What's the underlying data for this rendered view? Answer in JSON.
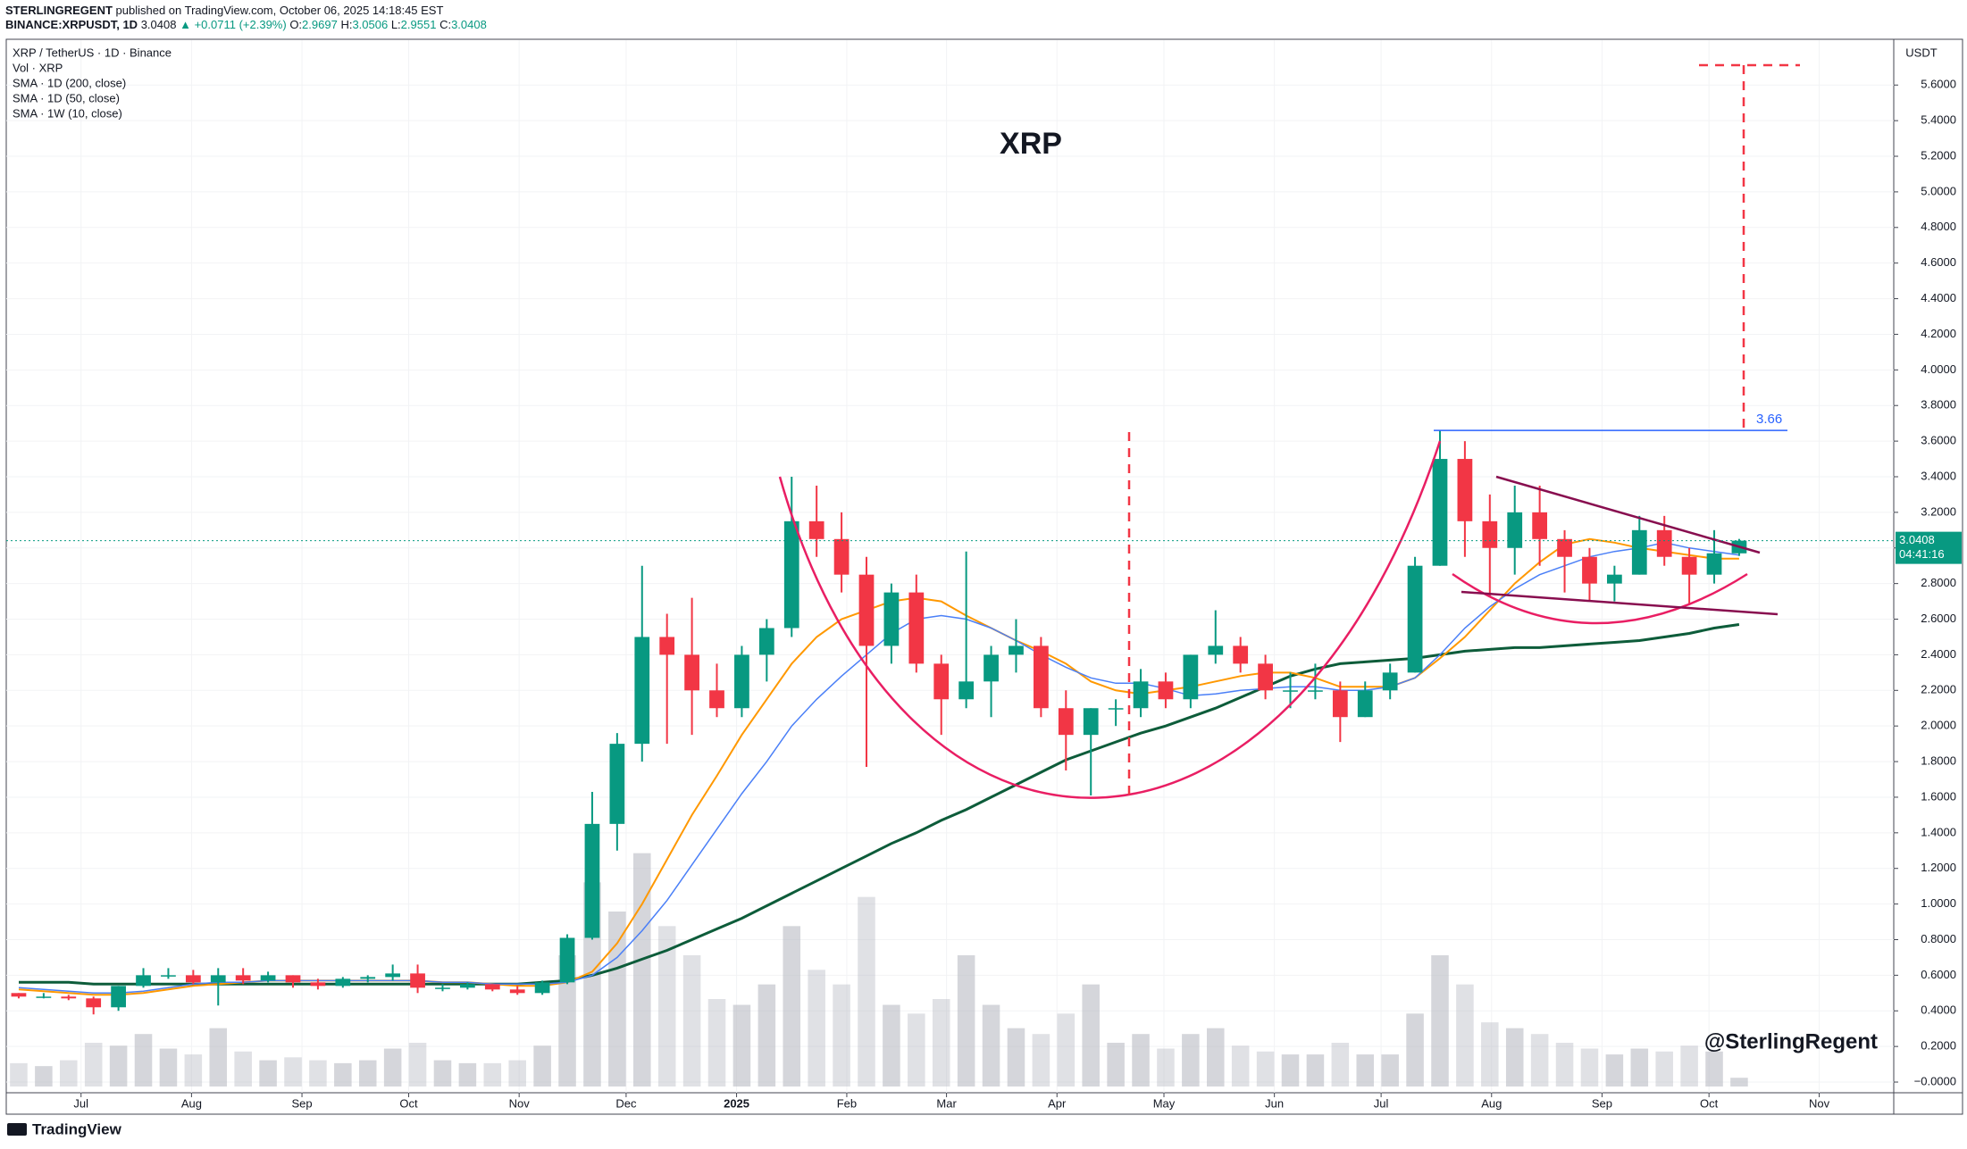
{
  "header": {
    "publisher": "STERLINGREGENT",
    "published": "published on TradingView.com, October 06, 2025 14:18:45 EST",
    "symbol": "BINANCE:XRPUSDT, 1D",
    "price": 3.0408,
    "change": "▲ +0.0711 (+2.39%)",
    "ohlc": [
      {
        "key": "O:",
        "value": 2.9697
      },
      {
        "key": "H:",
        "value": 3.0506
      },
      {
        "key": "L:",
        "value": 2.9551
      },
      {
        "key": "C:",
        "value": 3.0408
      }
    ]
  },
  "footer": {
    "brand": "TradingView"
  },
  "chart_data": {
    "type": "candlestick",
    "title": "XRP",
    "watermark": "@SterlingRegent",
    "symbol": "XRP / TetherUS · 1D · Binance",
    "volume_name": "Vol · XRP",
    "currency": "USDT",
    "up_color": "#089981",
    "down_color": "#f23645",
    "volume_color": "#b2b5be",
    "grid": true,
    "categories": [
      null,
      null,
      null,
      null,
      null,
      null,
      null,
      null,
      null,
      null,
      null,
      null,
      null,
      null,
      null,
      null,
      null,
      null,
      null,
      null,
      null,
      null,
      null,
      null,
      null,
      null,
      null,
      null,
      null,
      null,
      null,
      null,
      null,
      null,
      null,
      null,
      null,
      null,
      null,
      null,
      null,
      null,
      null,
      null,
      null,
      null,
      null,
      null,
      null,
      null,
      null,
      null,
      null,
      null,
      null,
      null,
      null,
      null,
      null,
      null,
      null,
      null,
      null,
      null,
      null,
      null,
      null,
      null,
      null,
      null
    ],
    "open": [
      0.5,
      0.48,
      0.48,
      0.47,
      0.42,
      0.54,
      0.6,
      0.6,
      0.56,
      0.6,
      0.57,
      0.6,
      0.56,
      0.54,
      0.58,
      0.59,
      0.61,
      0.53,
      0.53,
      0.55,
      0.52,
      0.5,
      0.56,
      0.81,
      1.45,
      1.9,
      2.5,
      2.4,
      2.2,
      2.1,
      2.4,
      2.55,
      3.15,
      3.05,
      2.85,
      2.45,
      2.75,
      2.35,
      2.15,
      2.25,
      2.4,
      2.45,
      2.1,
      1.95,
      2.1,
      2.1,
      2.25,
      2.15,
      2.4,
      2.45,
      2.35,
      2.2,
      2.2,
      2.2,
      2.05,
      2.2,
      2.3,
      2.9,
      3.5,
      3.15,
      3.0,
      3.2,
      3.05,
      2.95,
      2.8,
      2.85,
      3.1,
      2.95,
      2.85,
      2.9697
    ],
    "high": [
      0.5,
      0.5,
      0.49,
      0.48,
      0.54,
      0.64,
      0.64,
      0.63,
      0.64,
      0.64,
      0.62,
      0.6,
      0.58,
      0.59,
      0.6,
      0.66,
      0.66,
      0.55,
      0.56,
      0.55,
      0.54,
      0.57,
      0.83,
      1.63,
      1.96,
      2.9,
      2.63,
      2.72,
      2.35,
      2.45,
      2.6,
      3.4,
      3.35,
      3.2,
      2.95,
      2.8,
      2.85,
      2.4,
      2.98,
      2.45,
      2.6,
      2.5,
      2.2,
      2.1,
      2.15,
      2.32,
      2.3,
      2.4,
      2.65,
      2.5,
      2.4,
      2.3,
      2.35,
      2.25,
      2.25,
      2.35,
      2.95,
      3.66,
      3.6,
      3.3,
      3.35,
      3.35,
      3.1,
      3.0,
      2.9,
      3.18,
      3.18,
      3.0,
      3.1,
      3.0506
    ],
    "low": [
      0.47,
      0.47,
      0.46,
      0.38,
      0.4,
      0.53,
      0.58,
      0.55,
      0.43,
      0.55,
      0.56,
      0.53,
      0.52,
      0.53,
      0.56,
      0.57,
      0.5,
      0.51,
      0.52,
      0.51,
      0.49,
      0.49,
      0.55,
      0.8,
      1.3,
      1.8,
      1.9,
      1.95,
      2.05,
      2.05,
      2.25,
      2.5,
      2.95,
      2.75,
      1.77,
      2.35,
      2.3,
      1.95,
      2.1,
      2.05,
      2.3,
      2.05,
      1.75,
      1.61,
      2.0,
      2.05,
      2.1,
      2.1,
      2.35,
      2.3,
      2.15,
      2.1,
      2.15,
      1.91,
      2.05,
      2.15,
      2.3,
      2.9,
      2.95,
      2.73,
      2.85,
      2.9,
      2.75,
      2.7,
      2.7,
      2.85,
      2.9,
      2.68,
      2.8,
      2.9551
    ],
    "close": [
      0.48,
      0.48,
      0.47,
      0.42,
      0.54,
      0.6,
      0.6,
      0.56,
      0.6,
      0.57,
      0.6,
      0.56,
      0.54,
      0.58,
      0.59,
      0.61,
      0.53,
      0.53,
      0.55,
      0.52,
      0.5,
      0.56,
      0.81,
      1.45,
      1.9,
      2.5,
      2.4,
      2.2,
      2.1,
      2.4,
      2.55,
      3.15,
      3.05,
      2.85,
      2.45,
      2.75,
      2.35,
      2.15,
      2.25,
      2.4,
      2.45,
      2.1,
      1.95,
      2.1,
      2.1,
      2.25,
      2.15,
      2.4,
      2.45,
      2.35,
      2.2,
      2.2,
      2.2,
      2.05,
      2.2,
      2.3,
      2.9,
      3.5,
      3.15,
      3.0,
      3.2,
      3.05,
      2.95,
      2.8,
      2.85,
      3.1,
      2.95,
      2.85,
      2.97,
      3.0408
    ],
    "volume": [
      800,
      700,
      900,
      1500,
      1400,
      1800,
      1300,
      1100,
      2000,
      1200,
      900,
      1000,
      900,
      800,
      900,
      1300,
      1500,
      900,
      800,
      800,
      900,
      1400,
      4500,
      7000,
      6000,
      8000,
      5500,
      4500,
      3000,
      2800,
      3500,
      5500,
      4000,
      3500,
      6500,
      2800,
      2500,
      3000,
      4500,
      2800,
      2000,
      1800,
      2500,
      3500,
      1500,
      1800,
      1300,
      1800,
      2000,
      1400,
      1200,
      1100,
      1100,
      1500,
      1100,
      1100,
      2500,
      4500,
      3500,
      2200,
      2000,
      1800,
      1500,
      1300,
      1100,
      1300,
      1200,
      1400,
      1200,
      300
    ],
    "vlim": [
      0,
      36000
    ],
    "series": [
      {
        "name": "SMA · 1D (200, close)",
        "color": "#0d5c3a",
        "width": 3,
        "values": [
          0.56,
          0.56,
          0.56,
          0.55,
          0.55,
          0.55,
          0.55,
          0.55,
          0.55,
          0.55,
          0.55,
          0.55,
          0.55,
          0.55,
          0.55,
          0.55,
          0.55,
          0.55,
          0.55,
          0.55,
          0.55,
          0.56,
          0.57,
          0.6,
          0.64,
          0.69,
          0.74,
          0.8,
          0.86,
          0.92,
          0.99,
          1.06,
          1.13,
          1.2,
          1.27,
          1.34,
          1.4,
          1.47,
          1.53,
          1.6,
          1.67,
          1.74,
          1.81,
          1.86,
          1.91,
          1.96,
          2.0,
          2.05,
          2.1,
          2.16,
          2.22,
          2.28,
          2.32,
          2.35,
          2.36,
          2.37,
          2.38,
          2.4,
          2.42,
          2.43,
          2.44,
          2.44,
          2.45,
          2.46,
          2.47,
          2.48,
          2.5,
          2.52,
          2.55,
          2.57
        ]
      },
      {
        "name": "SMA · 1D (50, close)",
        "color": "#ff9800",
        "width": 2,
        "values": [
          0.52,
          0.51,
          0.5,
          0.49,
          0.49,
          0.5,
          0.52,
          0.54,
          0.55,
          0.56,
          0.57,
          0.57,
          0.57,
          0.57,
          0.57,
          0.57,
          0.57,
          0.56,
          0.56,
          0.55,
          0.54,
          0.54,
          0.56,
          0.62,
          0.78,
          1.0,
          1.25,
          1.5,
          1.72,
          1.95,
          2.15,
          2.35,
          2.5,
          2.6,
          2.65,
          2.7,
          2.72,
          2.7,
          2.62,
          2.55,
          2.48,
          2.42,
          2.35,
          2.25,
          2.2,
          2.18,
          2.2,
          2.22,
          2.25,
          2.28,
          2.3,
          2.3,
          2.27,
          2.22,
          2.22,
          2.22,
          2.27,
          2.38,
          2.5,
          2.65,
          2.8,
          2.92,
          3.02,
          3.05,
          3.03,
          3.0,
          2.98,
          2.96,
          2.94,
          2.94
        ]
      },
      {
        "name": "SMA · 1W (10, close)",
        "color": "#4a7ff7",
        "width": 1.5,
        "values": [
          0.53,
          0.52,
          0.51,
          0.5,
          0.5,
          0.51,
          0.53,
          0.55,
          0.56,
          0.56,
          0.57,
          0.57,
          0.57,
          0.57,
          0.57,
          0.57,
          0.57,
          0.56,
          0.56,
          0.55,
          0.55,
          0.55,
          0.56,
          0.6,
          0.7,
          0.85,
          1.02,
          1.22,
          1.42,
          1.62,
          1.8,
          2.0,
          2.15,
          2.28,
          2.4,
          2.52,
          2.6,
          2.62,
          2.6,
          2.55,
          2.48,
          2.4,
          2.33,
          2.27,
          2.24,
          2.24,
          2.21,
          2.17,
          2.18,
          2.2,
          2.21,
          2.22,
          2.22,
          2.2,
          2.2,
          2.22,
          2.27,
          2.4,
          2.55,
          2.67,
          2.77,
          2.85,
          2.9,
          2.95,
          2.98,
          3.0,
          3.03,
          3.0,
          2.98,
          2.96
        ]
      }
    ],
    "last_price": 3.0408,
    "countdown": "04:41:16",
    "level": 3.66,
    "xlim": [
      -0.5,
      75.2
    ],
    "xticks": [
      {
        "value": 2.5,
        "label": "Jul"
      },
      {
        "value": 6.93,
        "label": "Aug"
      },
      {
        "value": 11.36,
        "label": "Sep"
      },
      {
        "value": 15.64,
        "label": "Oct"
      },
      {
        "value": 20.07,
        "label": "Nov"
      },
      {
        "value": 24.36,
        "label": "Dec"
      },
      {
        "value": 28.79,
        "label": "2025"
      },
      {
        "value": 33.21,
        "label": "Feb"
      },
      {
        "value": 37.21,
        "label": "Mar"
      },
      {
        "value": 41.64,
        "label": "Apr"
      },
      {
        "value": 45.93,
        "label": "May"
      },
      {
        "value": 50.36,
        "label": "Jun"
      },
      {
        "value": 54.64,
        "label": "Jul"
      },
      {
        "value": 59.07,
        "label": "Aug"
      },
      {
        "value": 63.5,
        "label": "Sep"
      },
      {
        "value": 67.79,
        "label": "Oct"
      },
      {
        "value": 72.21,
        "label": "Nov"
      }
    ],
    "ylim": [
      -0.045,
      5.852
    ],
    "yticks": [
      {
        "value": 0,
        "label": "−0.0000"
      },
      {
        "value": 0.2,
        "label": "0.2000"
      },
      {
        "value": 0.4,
        "label": "0.4000"
      },
      {
        "value": 0.6,
        "label": "0.6000"
      },
      {
        "value": 0.8,
        "label": "0.8000"
      },
      {
        "value": 1,
        "label": "1.0000"
      },
      {
        "value": 1.2,
        "label": "1.2000"
      },
      {
        "value": 1.4,
        "label": "1.4000"
      },
      {
        "value": 1.6,
        "label": "1.6000"
      },
      {
        "value": 1.8,
        "label": "1.8000"
      },
      {
        "value": 2,
        "label": "2.0000"
      },
      {
        "value": 2.2,
        "label": "2.2000"
      },
      {
        "value": 2.4,
        "label": "2.4000"
      },
      {
        "value": 2.6,
        "label": "2.6000"
      },
      {
        "value": 2.8,
        "label": "2.8000"
      },
      {
        "value": 3,
        "label": "3.0000"
      },
      {
        "value": 3.2,
        "label": "3.2000"
      },
      {
        "value": 3.4,
        "label": "3.4000"
      },
      {
        "value": 3.6,
        "label": "3.6000"
      },
      {
        "value": 3.8,
        "label": "3.8000"
      },
      {
        "value": 4,
        "label": "4.0000"
      },
      {
        "value": 4.2,
        "label": "4.2000"
      },
      {
        "value": 4.4,
        "label": "4.4000"
      },
      {
        "value": 4.6,
        "label": "4.6000"
      },
      {
        "value": 4.8,
        "label": "4.8000"
      },
      {
        "value": 5,
        "label": "5.0000"
      },
      {
        "value": 5.2,
        "label": "5.2000"
      },
      {
        "value": 5.4,
        "label": "5.4000"
      },
      {
        "value": 5.6,
        "label": "5.6000"
      }
    ]
  }
}
